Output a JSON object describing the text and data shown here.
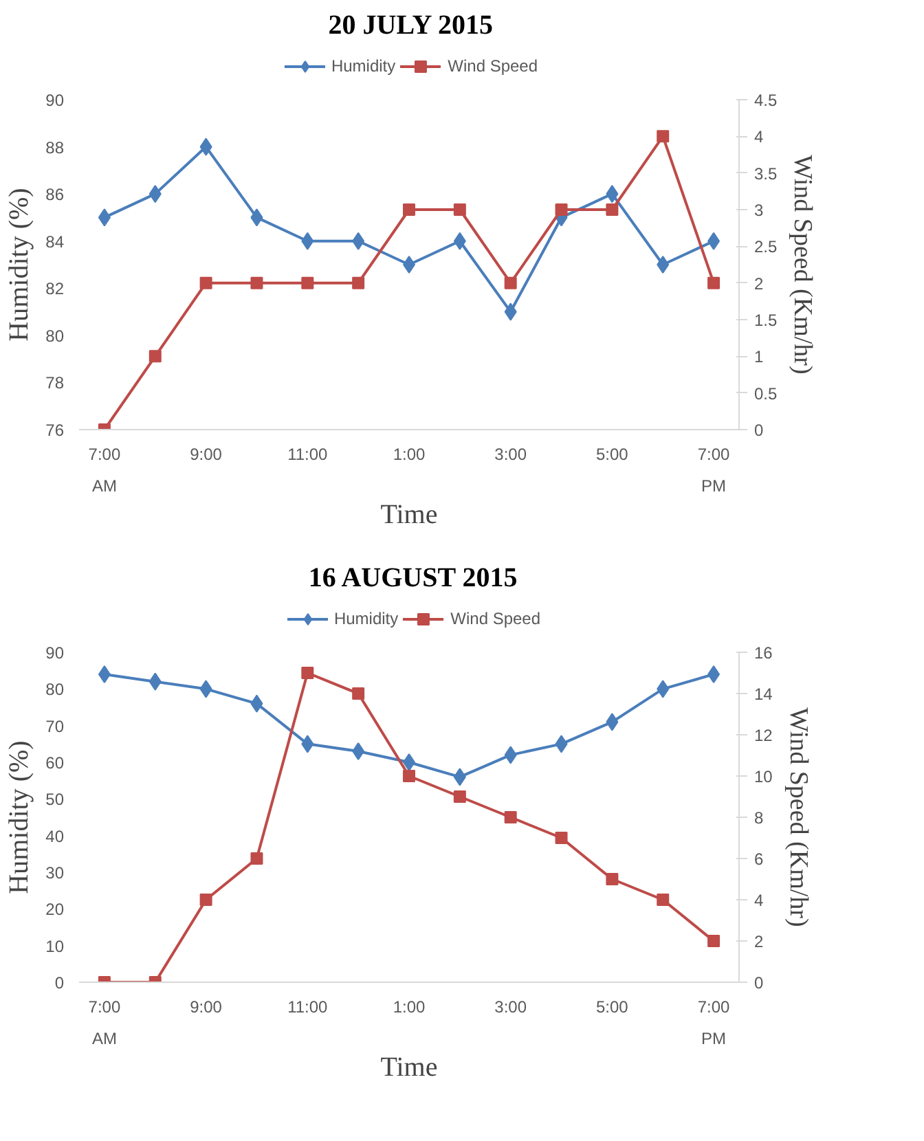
{
  "chart_data": [
    {
      "type": "line",
      "title": "20 JULY 2015",
      "xlabel": "Time",
      "ylabel": "Humidity (%)",
      "y2label": "Wind Speed (Km/hr)",
      "categories": [
        "7:00",
        null,
        "9:00",
        null,
        "11:00",
        null,
        "1:00",
        null,
        "3:00",
        null,
        "5:00",
        null,
        "7:00"
      ],
      "series": [
        {
          "name": "Humidity",
          "color": "#4a7ebb",
          "marker": "diamond",
          "values": [
            85,
            86,
            88,
            85,
            84,
            84,
            83,
            84,
            81,
            85,
            86,
            83,
            84
          ]
        },
        {
          "name": "Wind Speed",
          "color": "#be4b48",
          "marker": "square",
          "axis": "y2",
          "values": [
            0,
            1,
            2,
            2,
            2,
            2,
            3,
            3,
            2,
            3,
            3,
            4,
            2
          ]
        }
      ],
      "ylim": [
        76,
        90
      ],
      "yticks": [
        76,
        78,
        80,
        82,
        84,
        86,
        88,
        90
      ],
      "y2lim": [
        0,
        4.5
      ],
      "y2ticks": [
        0,
        0.5,
        1,
        1.5,
        2,
        2.5,
        3,
        3.5,
        4,
        4.5
      ],
      "annotations": [
        "AM",
        "PM"
      ],
      "legend": "top",
      "grid": false
    },
    {
      "type": "line",
      "title": "16 AUGUST 2015",
      "xlabel": "Time",
      "ylabel": "Humidity (%)",
      "y2label": "Wind Speed (Km/hr)",
      "categories": [
        "7:00",
        null,
        "9:00",
        null,
        "11:00",
        null,
        "1:00",
        null,
        "3:00",
        null,
        "5:00",
        null,
        "7:00"
      ],
      "series": [
        {
          "name": "Humidity",
          "color": "#4a7ebb",
          "marker": "diamond",
          "values": [
            84,
            82,
            80,
            76,
            65,
            63,
            60,
            56,
            62,
            65,
            71,
            80,
            84
          ]
        },
        {
          "name": "Wind Speed",
          "color": "#be4b48",
          "marker": "square",
          "axis": "y2",
          "values": [
            0,
            0,
            4,
            6,
            15,
            14,
            10,
            9,
            8,
            7,
            5,
            4,
            2
          ]
        }
      ],
      "ylim": [
        0,
        90
      ],
      "yticks": [
        0,
        10,
        20,
        30,
        40,
        50,
        60,
        70,
        80,
        90
      ],
      "y2lim": [
        0,
        16
      ],
      "y2ticks": [
        0,
        2,
        4,
        6,
        8,
        10,
        12,
        14,
        16
      ],
      "annotations": [
        "AM",
        "PM"
      ],
      "legend": "top",
      "grid": false
    }
  ]
}
